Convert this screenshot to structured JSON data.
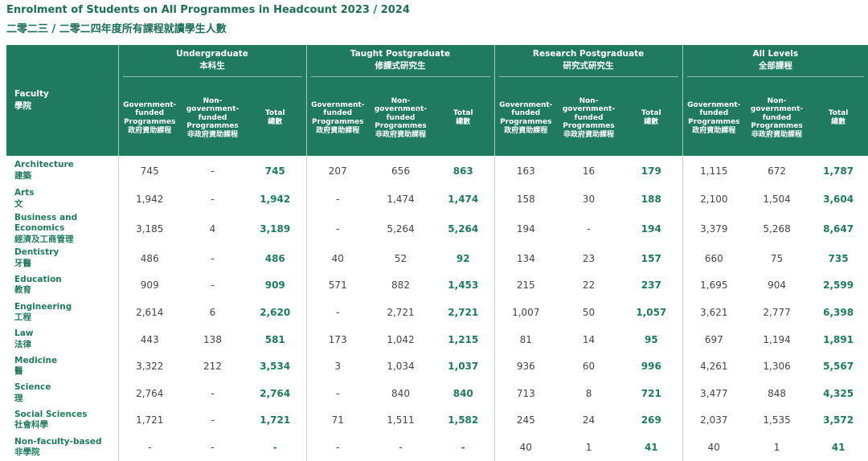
{
  "title_en": "Enrolment of Students on All Programmes in Headcount 2023 / 2024",
  "title_zh": "二零二三 / 二零二四年度所有課程就讀學生人數",
  "header": {
    "faculty_en": "Faculty",
    "faculty_zh": "學院",
    "groups": [
      {
        "en": "Undergraduate",
        "zh": "本科生"
      },
      {
        "en": "Taught Postgraduate",
        "zh": "修課式研究生"
      },
      {
        "en": "Research Postgraduate",
        "zh": "研究式研究生"
      },
      {
        "en": "All Levels",
        "zh": "全部課程"
      }
    ],
    "sub": [
      {
        "en": "Government-funded Programmes",
        "zh": "政府資助課程"
      },
      {
        "en": "Non-government-funded Programmes",
        "zh": "非政府資助課程"
      },
      {
        "en": "Total",
        "zh": "總數"
      }
    ]
  },
  "rows": [
    {
      "en": "Architecture",
      "zh": "建築",
      "v": [
        "745",
        "-",
        "745",
        "207",
        "656",
        "863",
        "163",
        "16",
        "179",
        "1,115",
        "672",
        "1,787"
      ]
    },
    {
      "en": "Arts",
      "zh": "文",
      "v": [
        "1,942",
        "-",
        "1,942",
        "-",
        "1,474",
        "1,474",
        "158",
        "30",
        "188",
        "2,100",
        "1,504",
        "3,604"
      ]
    },
    {
      "en": "Business and Economics",
      "zh": "經濟及工商管理",
      "v": [
        "3,185",
        "4",
        "3,189",
        "-",
        "5,264",
        "5,264",
        "194",
        "-",
        "194",
        "3,379",
        "5,268",
        "8,647"
      ]
    },
    {
      "en": "Dentistry",
      "zh": "牙醫",
      "v": [
        "486",
        "-",
        "486",
        "40",
        "52",
        "92",
        "134",
        "23",
        "157",
        "660",
        "75",
        "735"
      ]
    },
    {
      "en": "Education",
      "zh": "教育",
      "v": [
        "909",
        "-",
        "909",
        "571",
        "882",
        "1,453",
        "215",
        "22",
        "237",
        "1,695",
        "904",
        "2,599"
      ]
    },
    {
      "en": "Engineering",
      "zh": "工程",
      "v": [
        "2,614",
        "6",
        "2,620",
        "-",
        "2,721",
        "2,721",
        "1,007",
        "50",
        "1,057",
        "3,621",
        "2,777",
        "6,398"
      ]
    },
    {
      "en": "Law",
      "zh": "法律",
      "v": [
        "443",
        "138",
        "581",
        "173",
        "1,042",
        "1,215",
        "81",
        "14",
        "95",
        "697",
        "1,194",
        "1,891"
      ]
    },
    {
      "en": "Medicine",
      "zh": "醫",
      "v": [
        "3,322",
        "212",
        "3,534",
        "3",
        "1,034",
        "1,037",
        "936",
        "60",
        "996",
        "4,261",
        "1,306",
        "5,567"
      ]
    },
    {
      "en": "Science",
      "zh": "理",
      "v": [
        "2,764",
        "-",
        "2,764",
        "-",
        "840",
        "840",
        "713",
        "8",
        "721",
        "3,477",
        "848",
        "4,325"
      ]
    },
    {
      "en": "Social Sciences",
      "zh": "社會科學",
      "v": [
        "1,721",
        "-",
        "1,721",
        "71",
        "1,511",
        "1,582",
        "245",
        "24",
        "269",
        "2,037",
        "1,535",
        "3,572"
      ]
    },
    {
      "en": "Non-faculty-based",
      "zh": "非學院",
      "v": [
        "-",
        "-",
        "-",
        "-",
        "-",
        "-",
        "40",
        "1",
        "41",
        "40",
        "1",
        "41"
      ]
    }
  ]
}
